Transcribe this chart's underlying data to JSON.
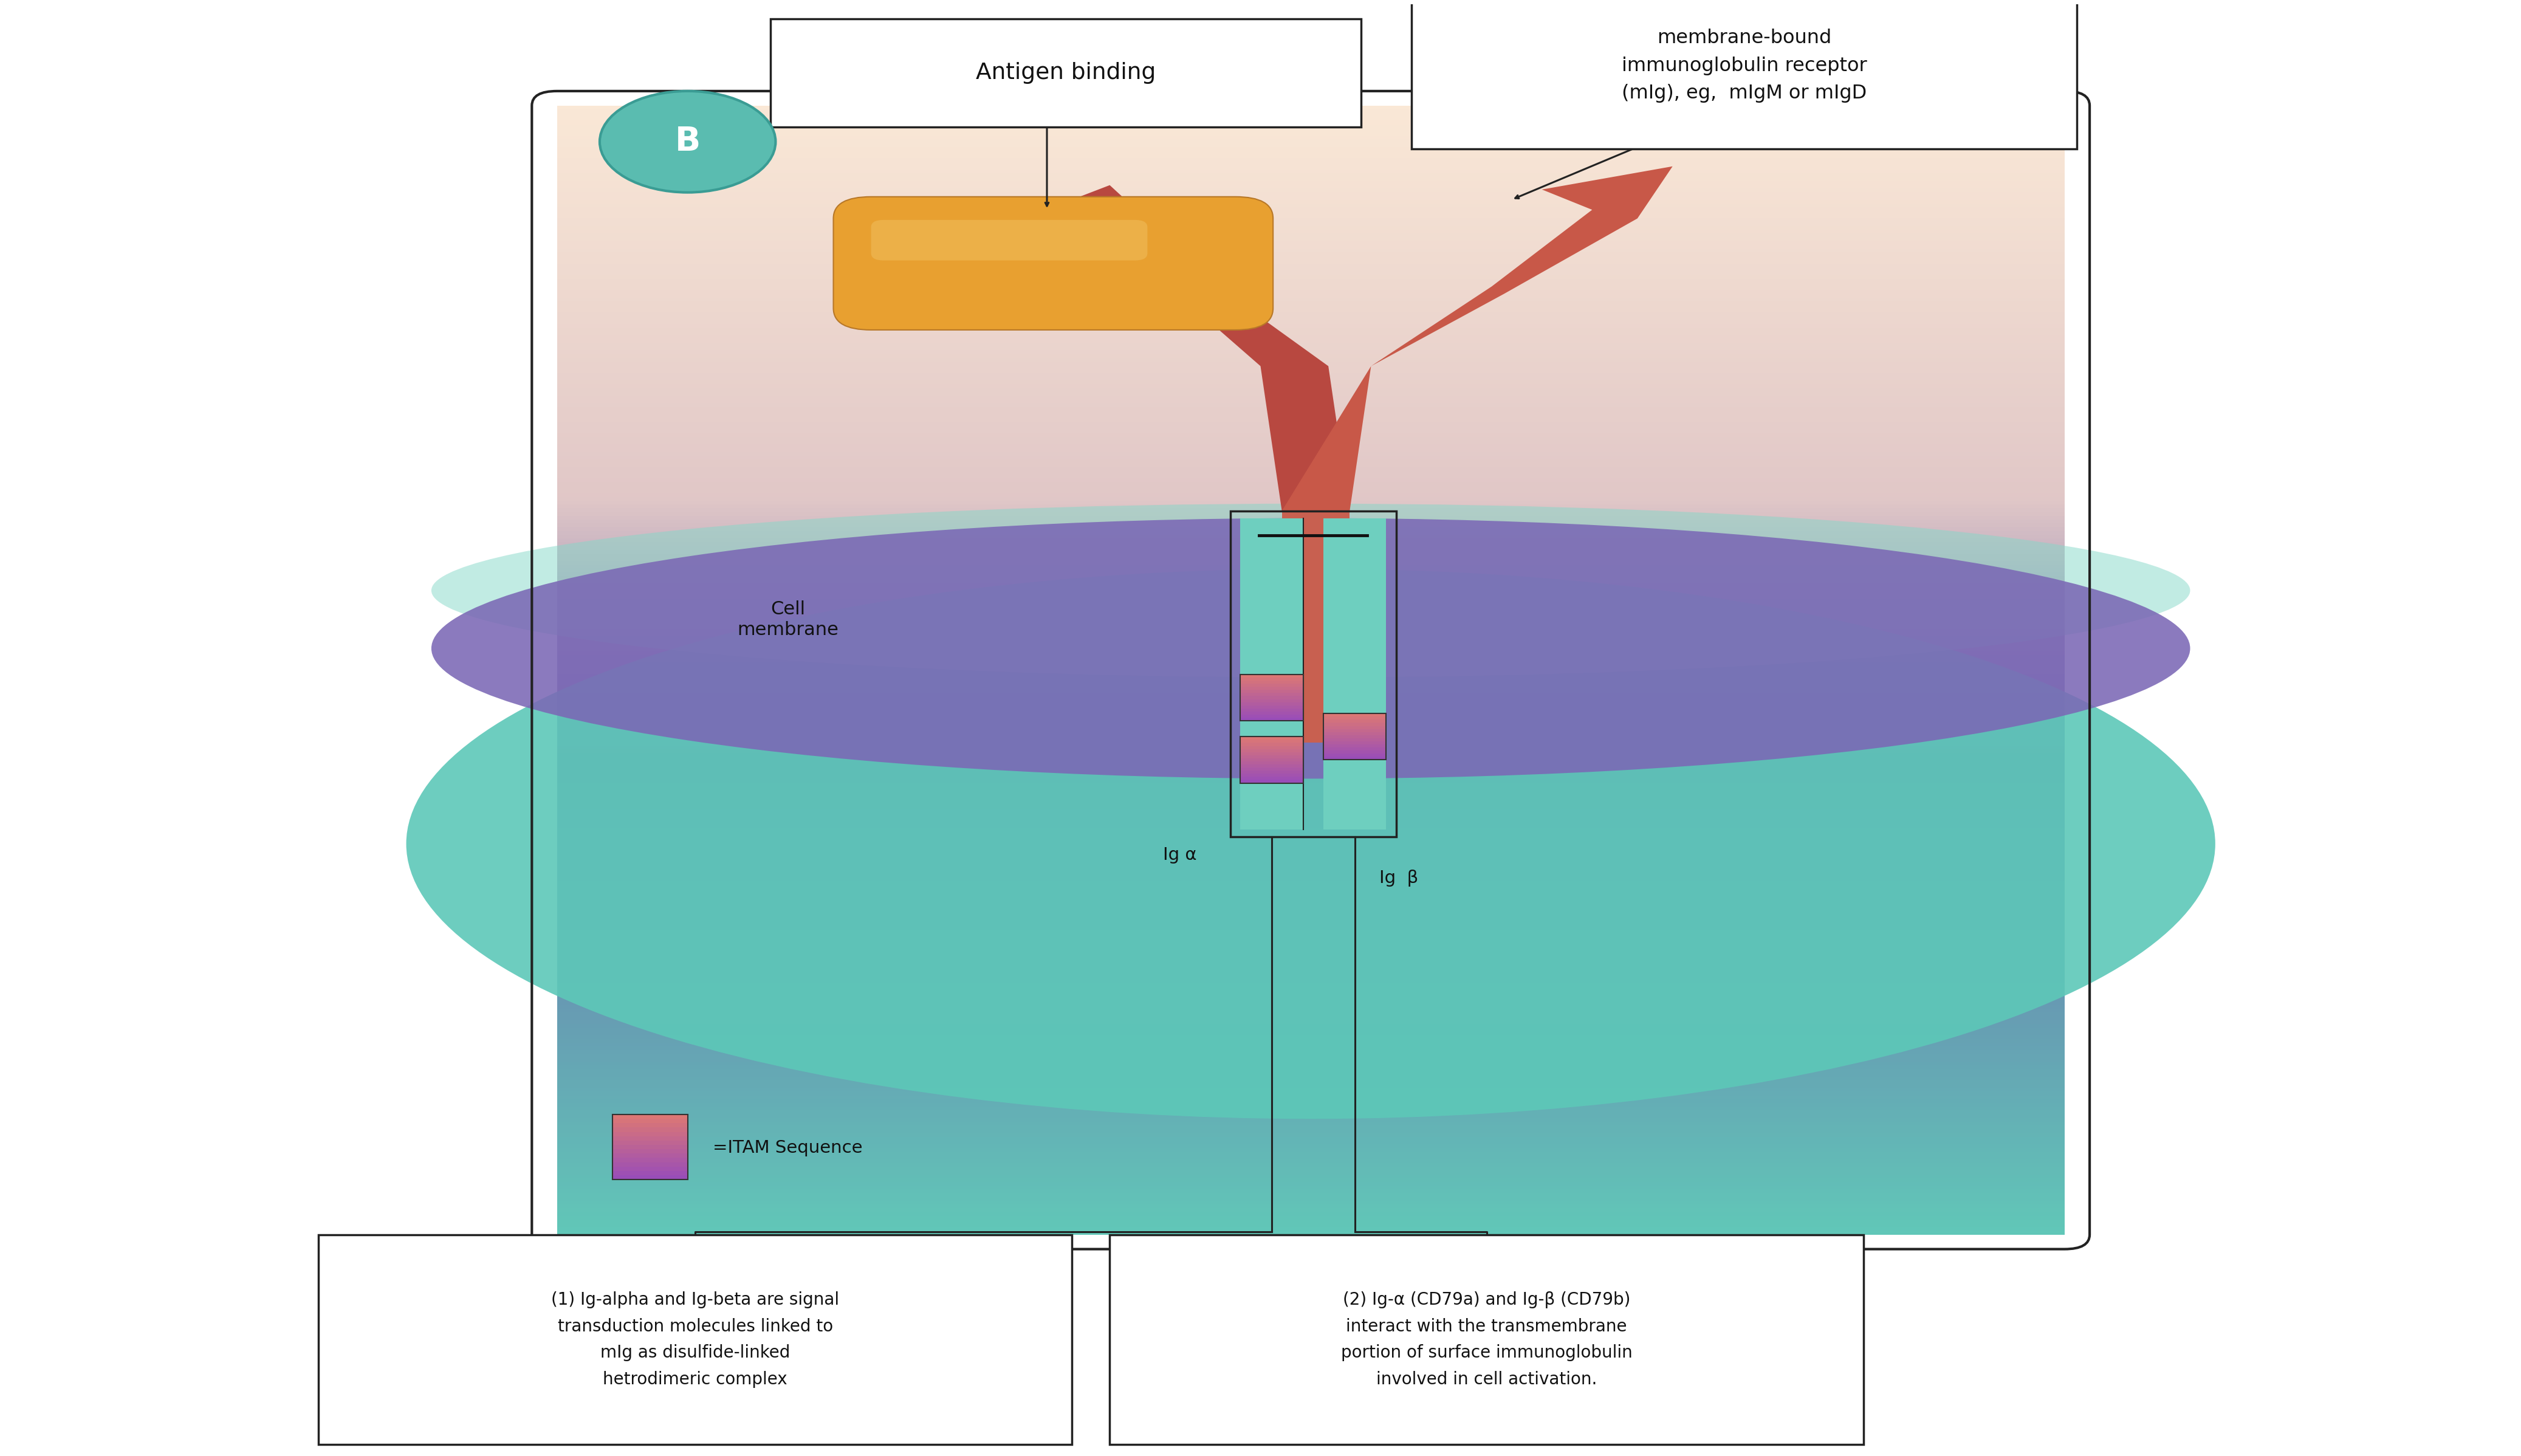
{
  "bg_color": "#ffffff",
  "teal_color": "#6ecfbf",
  "purple_color": "#7b68b5",
  "antibody_red": "#c05040",
  "antigen_orange": "#e8a030",
  "itam_pink": "#e07878",
  "itam_purple": "#9878b8",
  "B_circle_color": "#5abcb0",
  "text_dark": "#111111",
  "box_border": "#222222",
  "antigen_binding_label": "Antigen binding",
  "mIg_label": "membrane-bound\nimmunoglobulin receptor\n(mIg), eg,  mIgM or mIgD",
  "cell_label": "Cell\nmembrane",
  "igalpha_label": "Ig α",
  "igbeta_label": "Ig  β",
  "itam_label": "=ITAM Sequence",
  "box1_text": "(1) Ig-alpha and Ig-beta are signal\ntransduction molecules linked to\nmIg as disulfide-linked\nhetrodimeric complex",
  "box2_text": "(2) Ig-α (CD79a) and Ig-β (CD79b)\ninteract with the transmembrane\nportion of surface immunoglobulin\ninvolved in cell activation."
}
